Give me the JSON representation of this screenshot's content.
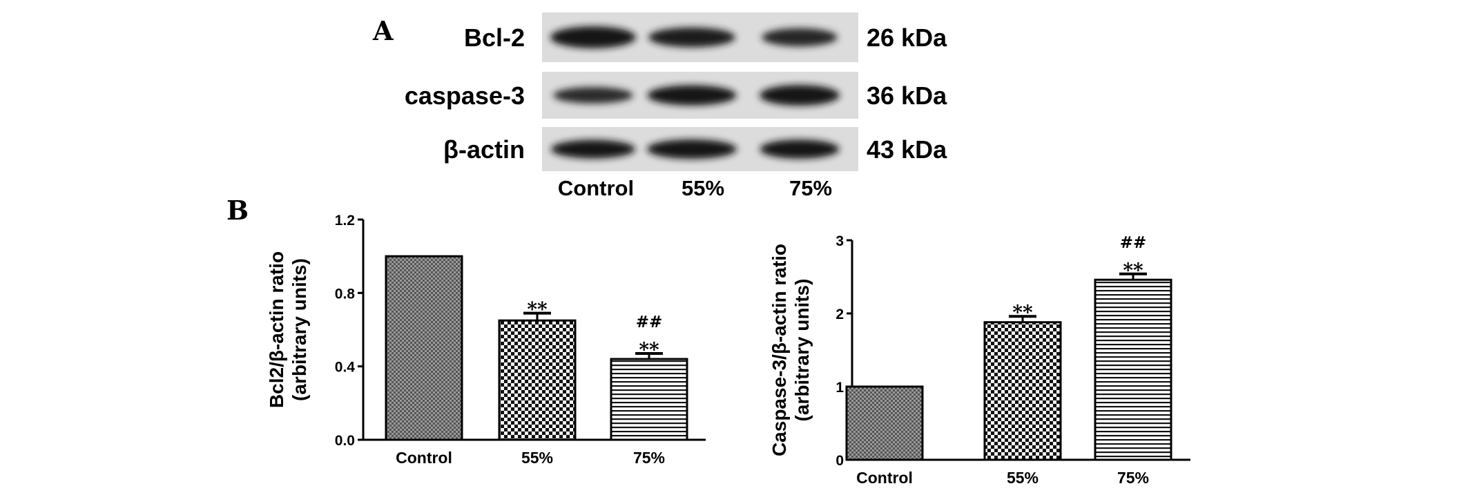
{
  "panels": {
    "a": "A",
    "b": "B"
  },
  "blot": {
    "rows": [
      {
        "protein": "Bcl-2",
        "size": "26 kDa",
        "intensity": [
          1.0,
          0.78,
          0.62
        ]
      },
      {
        "protein": "caspase-3",
        "size": "36 kDa",
        "intensity": [
          0.55,
          0.95,
          1.0
        ]
      },
      {
        "protein": "β-actin",
        "size": "43 kDa",
        "intensity": [
          0.9,
          1.0,
          0.95
        ]
      }
    ],
    "lanes": [
      "Control",
      "55%",
      "75%"
    ]
  },
  "chart_data": [
    {
      "type": "bar",
      "categories": [
        "Control",
        "55%",
        "75%"
      ],
      "values": [
        1.0,
        0.65,
        0.44
      ],
      "errors": [
        0,
        0.04,
        0.03
      ],
      "significance": [
        [],
        [
          "**"
        ],
        [
          "**",
          "##"
        ]
      ],
      "patterns": [
        "dense-check",
        "checker",
        "horizontal-lines"
      ],
      "ylabel": "Bcl2/β-actin ratio",
      "ylabel2": "(arbitrary units)",
      "ylim": [
        0,
        1.2
      ],
      "yticks": [
        0,
        0.4,
        0.8,
        1.2
      ],
      "ytick_labels": [
        "0.0",
        "0.4",
        "0.8",
        "1.2"
      ]
    },
    {
      "type": "bar",
      "categories": [
        "Control",
        "55%",
        "75%"
      ],
      "values": [
        1.0,
        1.88,
        2.46
      ],
      "errors": [
        0,
        0.08,
        0.08
      ],
      "significance": [
        [],
        [
          "**"
        ],
        [
          "**",
          "##"
        ]
      ],
      "patterns": [
        "dense-check",
        "checker",
        "horizontal-lines"
      ],
      "ylabel": "Caspase-3/β-actin ratio",
      "ylabel2": "(arbitrary units)",
      "ylim": [
        0,
        3
      ],
      "yticks": [
        0,
        1,
        2,
        3
      ],
      "ytick_labels": [
        "0",
        "1",
        "2",
        "3"
      ]
    }
  ]
}
